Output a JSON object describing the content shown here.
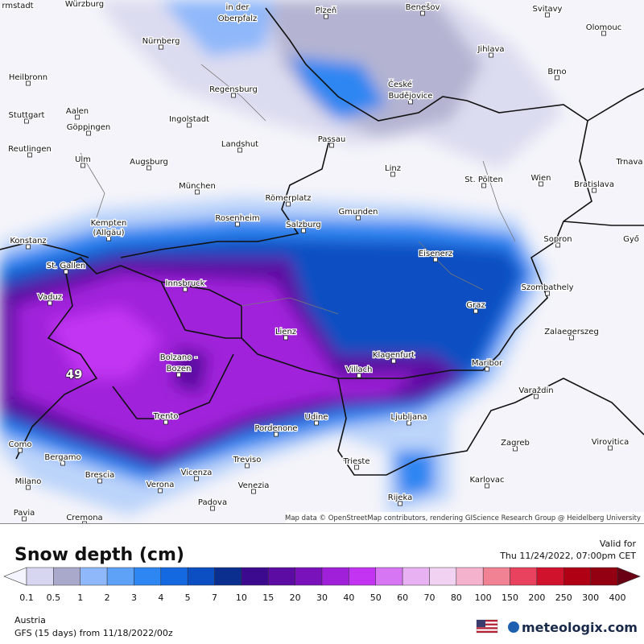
{
  "map": {
    "cities": [
      "rmstadt",
      "Würzburg",
      "in der",
      "Oberpfalz",
      "Plzeň",
      "Benešov",
      "Svitavy",
      "Olomouc",
      "Nürnberg",
      "Jihlava",
      "Heilbronn",
      "České",
      "Budějovice",
      "Brno",
      "Regensburg",
      "Aalen",
      "Stuttgart",
      "Ingolstadt",
      "Göppingen",
      "Landshut",
      "Passau",
      "Reutlingen",
      "Ulm",
      "Augsburg",
      "Linz",
      "St. Pölten",
      "Wien",
      "Bratislava",
      "Trnava",
      "München",
      "Römerplatz",
      "Gmunden",
      "Kempten",
      "(Allgäu)",
      "Rosenheim",
      "Salzburg",
      "Konstanz",
      "Sopron",
      "Győ",
      "St. Gallen",
      "Eisenerz",
      "Innsbruck",
      "Szombathely",
      "Vaduz",
      "Graz",
      "Lienz",
      "Zalaegerszeg",
      "Klagenfurt",
      "Bolzano -",
      "Bozen",
      "Maribor",
      "Villach",
      "Varaždin",
      "Trento",
      "Udine",
      "Ljubljana",
      "Pordenone",
      "Zagreb",
      "Virovitica",
      "Como",
      "Bergamo",
      "Treviso",
      "Trieste",
      "Vicenza",
      "Brescia",
      "Milano",
      "Karlovac",
      "Verona",
      "Venezia",
      "Rijeka",
      "Padova",
      "Pavia",
      "Cremona"
    ],
    "max_value": 49,
    "attribution": "Map data © OpenStreetMap contributors, rendering GIScience Research Group @ Heidelberg University"
  },
  "header": {
    "title": "Snow depth (cm)",
    "valid_label": "Valid for",
    "valid_time": "Thu 11/24/2022, 07:00pm CET"
  },
  "legend": {
    "ticks": [
      0.1,
      0.5,
      1,
      2,
      3,
      4,
      5,
      7,
      10,
      15,
      20,
      30,
      40,
      50,
      60,
      70,
      80,
      100,
      150,
      200,
      250,
      300,
      400
    ],
    "low_color": "#f4f4ff",
    "high_color": "#6a0014",
    "colors": [
      "#d6d6f0",
      "#a9a9cc",
      "#8fb8fa",
      "#5ea2f8",
      "#2e86f2",
      "#1468e0",
      "#0c4fc2",
      "#0a2f8e",
      "#3c0a8e",
      "#5c0ca2",
      "#7a12bc",
      "#a020da",
      "#c234f2",
      "#d676f2",
      "#e8b2f2",
      "#f2d2f2",
      "#f4b2cc",
      "#f08294",
      "#e8425e",
      "#d0122c",
      "#b00014",
      "#920012"
    ]
  },
  "footer": {
    "region": "Austria",
    "model": "GFS (15 days) from  11/18/2022/00z",
    "brand": "meteologix.com"
  }
}
